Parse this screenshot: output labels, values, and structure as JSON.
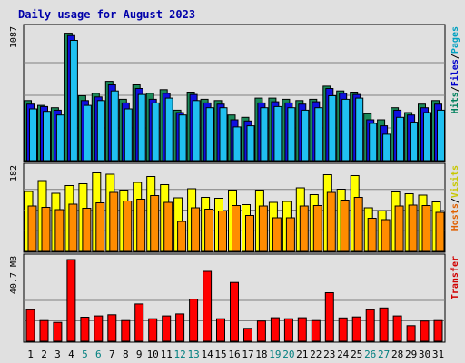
{
  "chart_data": {
    "type": "bar",
    "title": "Daily usage for August 2023",
    "title_color": "#0000aa",
    "categories": [
      "1",
      "2",
      "3",
      "4",
      "5",
      "6",
      "7",
      "8",
      "9",
      "10",
      "11",
      "12",
      "13",
      "14",
      "15",
      "16",
      "17",
      "18",
      "19",
      "20",
      "21",
      "22",
      "23",
      "24",
      "25",
      "26",
      "27",
      "28",
      "29",
      "30",
      "31"
    ],
    "weekend_days": [
      "5",
      "6",
      "12",
      "13",
      "19",
      "20",
      "26",
      "27"
    ],
    "weekday_label_color": "#000000",
    "weekend_label_color": "#007f7f",
    "panels": [
      {
        "id": "hits-files-pages",
        "tick_label": "1087",
        "ymax": 1087,
        "ylabel_parts": [
          {
            "text": "Hits",
            "color": "#00805c"
          },
          {
            "text": "/",
            "color": "#000000"
          },
          {
            "text": "Files",
            "color": "#0000cc"
          },
          {
            "text": "/",
            "color": "#000000"
          },
          {
            "text": "Pages",
            "color": "#00a0c0"
          }
        ],
        "series": [
          {
            "name": "Hits",
            "color": "#1b8a5a",
            "values": [
              500,
              460,
              440,
              1060,
              540,
              560,
              660,
              510,
              630,
              560,
              590,
              420,
              570,
              510,
              500,
              380,
              360,
              520,
              520,
              510,
              500,
              510,
              620,
              580,
              570,
              390,
              340,
              440,
              400,
              470,
              500
            ]
          },
          {
            "name": "Files",
            "color": "#1010e0",
            "values": [
              470,
              450,
              420,
              1040,
              500,
              530,
              630,
              480,
              600,
              510,
              560,
              400,
              550,
              480,
              470,
              340,
              330,
              480,
              490,
              480,
              470,
              490,
              600,
              560,
              550,
              340,
              290,
              420,
              380,
              440,
              470
            ]
          },
          {
            "name": "Pages",
            "color": "#20c0f0",
            "values": [
              430,
              410,
              380,
              1000,
              460,
              500,
              580,
              430,
              550,
              480,
              520,
              380,
              500,
              440,
              440,
              280,
              290,
              440,
              450,
              440,
              420,
              440,
              540,
              510,
              520,
              310,
              220,
              360,
              320,
              400,
              420
            ]
          }
        ]
      },
      {
        "id": "visits-hosts",
        "tick_label": "182",
        "ymax": 182,
        "ylabel_parts": [
          {
            "text": "Hosts",
            "color": "#e06000"
          },
          {
            "text": "/",
            "color": "#000000"
          },
          {
            "text": "Visits",
            "color": "#c8c800"
          }
        ],
        "series": [
          {
            "name": "Visits",
            "color": "#ffff00",
            "values": [
              132,
              156,
              128,
              145,
              149,
              173,
              170,
              135,
              152,
              165,
              147,
              118,
              138,
              119,
              117,
              135,
              103,
              135,
              108,
              110,
              140,
              125,
              169,
              137,
              167,
              96,
              89,
              131,
              127,
              124,
              109
            ]
          },
          {
            "name": "Hosts",
            "color": "#ff8c00",
            "values": [
              100,
              97,
              92,
              104,
              95,
              107,
              130,
              111,
              115,
              123,
              108,
              66,
              96,
              93,
              89,
              101,
              79,
              100,
              74,
              74,
              100,
              101,
              130,
              113,
              119,
              73,
              70,
              100,
              102,
              101,
              86
            ]
          }
        ]
      },
      {
        "id": "transfer",
        "tick_label": "40.7 MB",
        "ymax": 40.7,
        "ylabel_parts": [
          {
            "text": "Transfer",
            "color": "#d00000"
          }
        ],
        "series": [
          {
            "name": "Transfer",
            "color": "#ff0000",
            "values": [
              15.7,
              10.3,
              9.4,
              40.7,
              12.0,
              12.6,
              13.2,
              10.3,
              18.6,
              11.2,
              12.6,
              13.6,
              21.0,
              34.8,
              11.2,
              29.3,
              6.4,
              10.1,
              11.7,
              11.2,
              11.7,
              10.3,
              24.2,
              11.6,
              12.1,
              15.7,
              16.6,
              12.6,
              7.8,
              10.1,
              10.3
            ]
          }
        ]
      }
    ]
  }
}
